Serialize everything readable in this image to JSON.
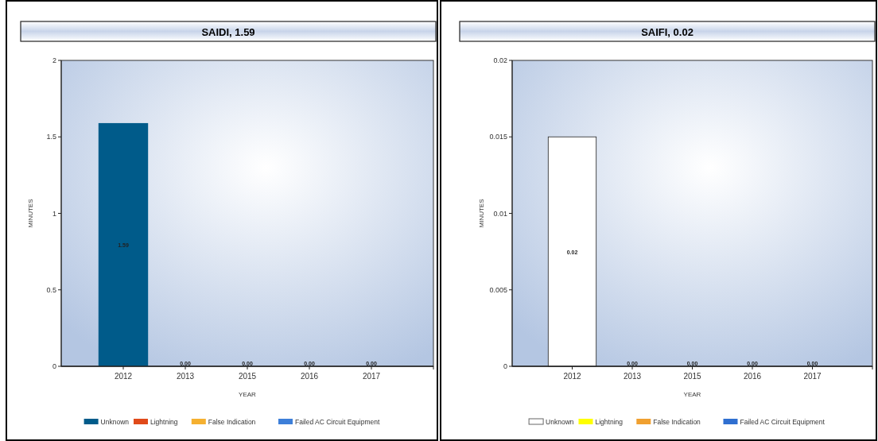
{
  "chart_data": [
    {
      "type": "bar",
      "title": "SAIDI, 1.59",
      "xlabel": "YEAR",
      "ylabel": "MINUTES",
      "categories": [
        "2012",
        "2013",
        "2015",
        "2016",
        "2017"
      ],
      "stacked": true,
      "ylim": [
        0,
        2
      ],
      "yticks": [
        0,
        0.5,
        1,
        1.5,
        2
      ],
      "legend": "bottom",
      "grid": false,
      "series": [
        {
          "name": "Unknown",
          "color": "#005b8a",
          "values": [
            1.59,
            0,
            0,
            0,
            0
          ],
          "value_labels": [
            "1.59",
            "0.00",
            "0.00",
            "0.00",
            "0.00"
          ]
        },
        {
          "name": "Lightning",
          "color": "#e04a1a",
          "values": [
            0,
            0,
            0,
            0,
            0
          ]
        },
        {
          "name": "False Indication",
          "color": "#f5b030",
          "values": [
            0,
            0,
            0,
            0,
            0
          ]
        },
        {
          "name": "Failed AC Circuit Equipment",
          "color": "#3d7fd9",
          "values": [
            0,
            0,
            0,
            0,
            0
          ]
        }
      ]
    },
    {
      "type": "bar",
      "title": "SAIFI, 0.02",
      "xlabel": "YEAR",
      "ylabel": "MINUTES",
      "categories": [
        "2012",
        "2013",
        "2015",
        "2016",
        "2017"
      ],
      "stacked": true,
      "ylim": [
        0,
        0.02
      ],
      "yticks": [
        0,
        0.005,
        0.01,
        0.015,
        0.02
      ],
      "legend": "bottom",
      "grid": false,
      "series": [
        {
          "name": "Unknown",
          "color": "#ffffff",
          "values": [
            0.015,
            0,
            0,
            0,
            0
          ],
          "value_labels": [
            "0.02",
            "0.00",
            "0.00",
            "0.00",
            "0.00"
          ]
        },
        {
          "name": "Lightning",
          "color": "#ffff00",
          "values": [
            0,
            0,
            0,
            0,
            0
          ]
        },
        {
          "name": "False Indication",
          "color": "#f0a030",
          "values": [
            0,
            0,
            0,
            0,
            0
          ]
        },
        {
          "name": "Failed AC Circuit Equipment",
          "color": "#2f6fd0",
          "values": [
            0,
            0,
            0,
            0,
            0
          ]
        }
      ]
    }
  ]
}
